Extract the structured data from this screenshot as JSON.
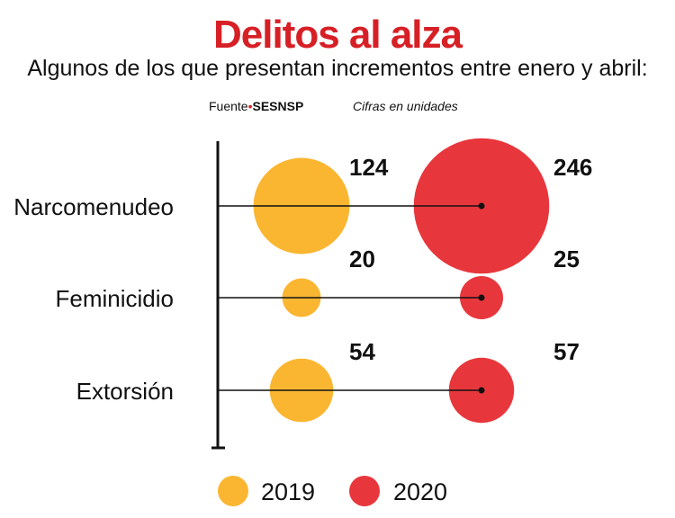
{
  "title": "Delitos al alza",
  "subtitle": "Algunos de los que presentan incrementos entre enero y abril:",
  "source_label": "Fuente",
  "source_name": "SESNSP",
  "units_note": "Cifras en unidades",
  "colors": {
    "title": "#d71f26",
    "2019": "#fbb631",
    "2020": "#e8373c"
  },
  "chart_data": {
    "type": "bubble",
    "categories": [
      "Narcomenudeo",
      "Feminicidio",
      "Extorsión"
    ],
    "series": [
      {
        "name": "2019",
        "values": [
          124,
          20,
          54
        ]
      },
      {
        "name": "2020",
        "values": [
          246,
          25,
          57
        ]
      }
    ],
    "legend": "bottom"
  }
}
